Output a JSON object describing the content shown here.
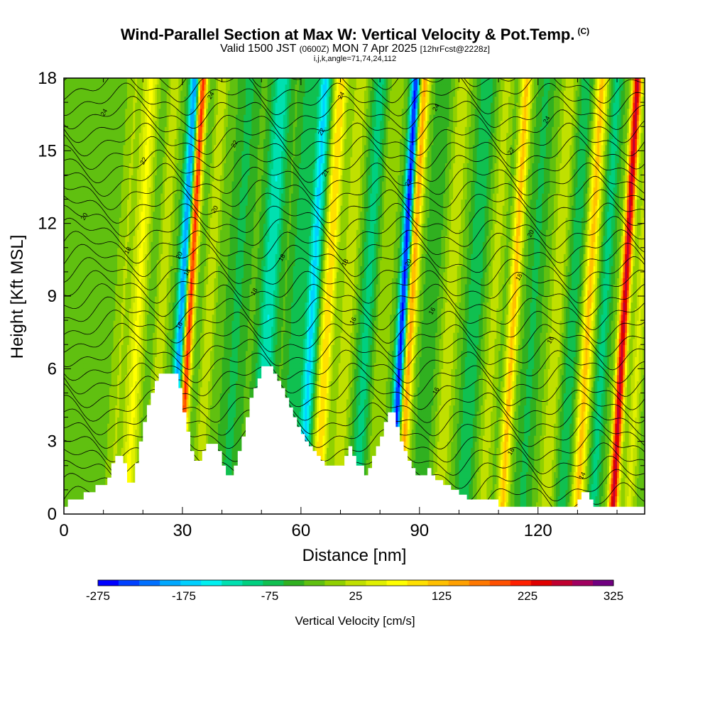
{
  "title": "Wind-Parallel Section at Max W: Vertical Velocity & Pot.Temp.",
  "title_tag": "(C)",
  "subtitle": {
    "valid": "Valid 1500 JST",
    "zulu": "(0600Z)",
    "date": "MON 7 Apr 2025",
    "fcst": "[12hrFcst@2228z]"
  },
  "subtitle2": "i,j,k,angle=71,74,24,112",
  "chart_data": {
    "type": "heatmap",
    "xlabel": "Distance [nm]",
    "ylabel": "Height [Kft MSL]",
    "xlim": [
      0,
      147
    ],
    "ylim": [
      0,
      18
    ],
    "x_ticks": [
      0,
      30,
      60,
      90,
      120
    ],
    "y_ticks": [
      0,
      3,
      6,
      9,
      12,
      15,
      18
    ],
    "colorbar": {
      "label": "Vertical Velocity [cm/s]",
      "min": -275,
      "max": 325,
      "step": 25,
      "tick_labels": [
        "-275",
        "-175",
        "-75",
        "25",
        "125",
        "225",
        "325"
      ],
      "colors": [
        "#0000ff",
        "#0040ff",
        "#0070ff",
        "#00a8ff",
        "#00d0ff",
        "#00f0f0",
        "#00e0b0",
        "#00d080",
        "#10c050",
        "#30b020",
        "#60c010",
        "#90d000",
        "#c0e000",
        "#e0f000",
        "#ffff00",
        "#ffe000",
        "#ffc000",
        "#ffa000",
        "#ff7800",
        "#ff5000",
        "#ff2000",
        "#e00000",
        "#c00030",
        "#a00060",
        "#700080"
      ]
    },
    "updrafts_x": [
      18,
      31,
      66,
      87,
      113,
      132,
      141
    ],
    "downdrafts_x": [
      29,
      51,
      62,
      85
    ],
    "terrain_kft": [
      [
        0,
        0.3
      ],
      [
        1,
        0.3
      ],
      [
        1,
        0.6
      ],
      [
        5,
        0.6
      ],
      [
        5,
        0.9
      ],
      [
        8,
        0.9
      ],
      [
        8,
        1.2
      ],
      [
        11,
        1.2
      ],
      [
        11,
        1.5
      ],
      [
        12,
        1.5
      ],
      [
        12,
        2.1
      ],
      [
        13,
        2.1
      ],
      [
        13,
        2.4
      ],
      [
        15,
        2.4
      ],
      [
        15,
        2.1
      ],
      [
        16,
        2.1
      ],
      [
        16,
        1.3
      ],
      [
        18,
        1.3
      ],
      [
        18,
        2.1
      ],
      [
        19,
        2.1
      ],
      [
        19,
        3.0
      ],
      [
        20,
        3.0
      ],
      [
        20,
        3.8
      ],
      [
        21,
        3.8
      ],
      [
        21,
        4.5
      ],
      [
        22,
        4.5
      ],
      [
        22,
        5.0
      ],
      [
        23,
        5.0
      ],
      [
        23,
        5.5
      ],
      [
        24,
        5.5
      ],
      [
        24,
        5.8
      ],
      [
        29,
        5.8
      ],
      [
        29,
        5.2
      ],
      [
        30,
        5.2
      ],
      [
        30,
        4.2
      ],
      [
        31,
        4.2
      ],
      [
        31,
        3.4
      ],
      [
        32,
        3.4
      ],
      [
        32,
        2.6
      ],
      [
        33,
        2.6
      ],
      [
        33,
        2.2
      ],
      [
        35,
        2.2
      ],
      [
        35,
        2.6
      ],
      [
        36,
        2.6
      ],
      [
        36,
        2.9
      ],
      [
        39,
        2.9
      ],
      [
        39,
        2.6
      ],
      [
        40,
        2.6
      ],
      [
        40,
        2.0
      ],
      [
        41,
        2.0
      ],
      [
        41,
        1.6
      ],
      [
        43,
        1.6
      ],
      [
        43,
        2.0
      ],
      [
        44,
        2.0
      ],
      [
        44,
        2.6
      ],
      [
        45,
        2.6
      ],
      [
        45,
        3.2
      ],
      [
        46,
        3.2
      ],
      [
        46,
        4.0
      ],
      [
        47,
        4.0
      ],
      [
        47,
        4.8
      ],
      [
        48,
        4.8
      ],
      [
        48,
        5.2
      ],
      [
        49,
        5.2
      ],
      [
        49,
        5.6
      ],
      [
        50,
        5.6
      ],
      [
        50,
        6.1
      ],
      [
        53,
        6.1
      ],
      [
        53,
        5.8
      ],
      [
        54,
        5.8
      ],
      [
        54,
        5.5
      ],
      [
        55,
        5.5
      ],
      [
        55,
        5.2
      ],
      [
        56,
        5.2
      ],
      [
        56,
        4.8
      ],
      [
        57,
        4.8
      ],
      [
        57,
        4.4
      ],
      [
        58,
        4.4
      ],
      [
        58,
        4.0
      ],
      [
        59,
        4.0
      ],
      [
        59,
        3.6
      ],
      [
        60,
        3.6
      ],
      [
        60,
        3.3
      ],
      [
        61,
        3.3
      ],
      [
        61,
        3.0
      ],
      [
        62,
        3.0
      ],
      [
        62,
        2.8
      ],
      [
        63,
        2.8
      ],
      [
        63,
        2.6
      ],
      [
        64,
        2.6
      ],
      [
        64,
        2.4
      ],
      [
        65,
        2.4
      ],
      [
        65,
        2.2
      ],
      [
        66,
        2.2
      ],
      [
        66,
        2.0
      ],
      [
        71,
        2.0
      ],
      [
        71,
        2.4
      ],
      [
        72,
        2.4
      ],
      [
        72,
        2.8
      ],
      [
        73,
        2.8
      ],
      [
        73,
        2.4
      ],
      [
        74,
        2.4
      ],
      [
        74,
        2.0
      ],
      [
        76,
        2.0
      ],
      [
        76,
        1.6
      ],
      [
        77,
        1.6
      ],
      [
        77,
        1.9
      ],
      [
        78,
        1.9
      ],
      [
        78,
        2.4
      ],
      [
        79,
        2.4
      ],
      [
        79,
        2.8
      ],
      [
        80,
        2.8
      ],
      [
        80,
        3.2
      ],
      [
        81,
        3.2
      ],
      [
        81,
        3.8
      ],
      [
        82,
        3.8
      ],
      [
        82,
        4.2
      ],
      [
        84,
        4.2
      ],
      [
        84,
        3.6
      ],
      [
        85,
        3.6
      ],
      [
        85,
        3.0
      ],
      [
        86,
        3.0
      ],
      [
        86,
        2.6
      ],
      [
        87,
        2.6
      ],
      [
        87,
        2.2
      ],
      [
        88,
        2.2
      ],
      [
        88,
        1.9
      ],
      [
        89,
        1.9
      ],
      [
        89,
        1.6
      ],
      [
        92,
        1.6
      ],
      [
        92,
        1.9
      ],
      [
        93,
        1.9
      ],
      [
        93,
        1.6
      ],
      [
        94,
        1.6
      ],
      [
        94,
        1.4
      ],
      [
        96,
        1.4
      ],
      [
        96,
        1.2
      ],
      [
        98,
        1.2
      ],
      [
        98,
        1.0
      ],
      [
        100,
        1.0
      ],
      [
        100,
        0.8
      ],
      [
        102,
        0.8
      ],
      [
        102,
        0.6
      ],
      [
        110,
        0.6
      ],
      [
        110,
        0.3
      ],
      [
        130,
        0.3
      ],
      [
        130,
        0.6
      ],
      [
        131,
        0.6
      ],
      [
        131,
        0.9
      ],
      [
        133,
        0.9
      ],
      [
        133,
        0.6
      ],
      [
        134,
        0.6
      ],
      [
        134,
        0.3
      ],
      [
        147,
        0.3
      ],
      [
        147,
        0
      ]
    ],
    "contour_labels": [
      {
        "x": 10,
        "y": 16.6,
        "text": "24"
      },
      {
        "x": 37,
        "y": 17.3,
        "text": "24"
      },
      {
        "x": 70,
        "y": 17.3,
        "text": "24"
      },
      {
        "x": 94,
        "y": 16.8,
        "text": "24"
      },
      {
        "x": 122,
        "y": 16.3,
        "text": "24"
      },
      {
        "x": 20,
        "y": 14.6,
        "text": "22"
      },
      {
        "x": 43,
        "y": 15.3,
        "text": "22"
      },
      {
        "x": 65,
        "y": 15.8,
        "text": "22"
      },
      {
        "x": 87,
        "y": 13.7,
        "text": "22"
      },
      {
        "x": 113,
        "y": 15.0,
        "text": "22"
      },
      {
        "x": 66,
        "y": 14.1,
        "text": "21"
      },
      {
        "x": 5,
        "y": 12.3,
        "text": "20"
      },
      {
        "x": 38,
        "y": 12.6,
        "text": "20"
      },
      {
        "x": 29,
        "y": 10.7,
        "text": "20"
      },
      {
        "x": 87,
        "y": 10.4,
        "text": "20"
      },
      {
        "x": 118,
        "y": 11.6,
        "text": "20"
      },
      {
        "x": 16,
        "y": 10.9,
        "text": "18"
      },
      {
        "x": 31,
        "y": 10.0,
        "text": "18"
      },
      {
        "x": 55,
        "y": 10.6,
        "text": "18"
      },
      {
        "x": 71,
        "y": 10.4,
        "text": "18"
      },
      {
        "x": 48,
        "y": 9.2,
        "text": "18"
      },
      {
        "x": 115,
        "y": 9.8,
        "text": "18"
      },
      {
        "x": 29,
        "y": 7.8,
        "text": "16"
      },
      {
        "x": 73,
        "y": 8.0,
        "text": "16"
      },
      {
        "x": 93,
        "y": 8.4,
        "text": "16"
      },
      {
        "x": 123,
        "y": 7.2,
        "text": "16"
      },
      {
        "x": 94,
        "y": 5.1,
        "text": "16"
      },
      {
        "x": 113,
        "y": 2.6,
        "text": "16"
      },
      {
        "x": 131,
        "y": 1.6,
        "text": "14"
      }
    ]
  }
}
